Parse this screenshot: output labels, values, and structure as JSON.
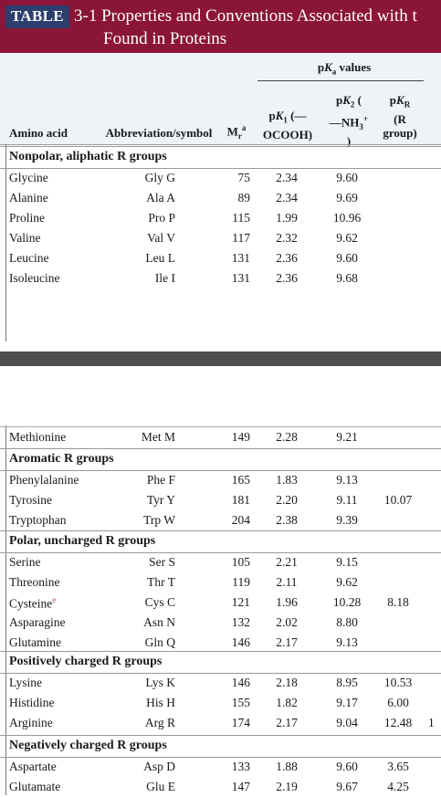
{
  "title": {
    "tag": "TABLE",
    "line1": "3-1 Properties and Conventions Associated with t",
    "line2": "Found in Proteins"
  },
  "headers": {
    "pka_group": "pKa values",
    "amino_acid": "Amino acid",
    "abbreviation": "Abbreviation/symbol",
    "mr": "Mr",
    "mr_sup": "a",
    "pk1": "pK1 (—\nOCOOH)",
    "pk2": "pK2 (\n—NH3+\n)",
    "pkr": "pKR\n(R\ngroup)"
  },
  "sections": [
    {
      "label": "Nonpolar, aliphatic R groups",
      "rows": [
        {
          "name": "Glycine",
          "abbr": "Gly G",
          "mr": "75",
          "pk1": "2.34",
          "pk2": "9.60",
          "pkr": ""
        },
        {
          "name": "Alanine",
          "abbr": "Ala A",
          "mr": "89",
          "pk1": "2.34",
          "pk2": "9.69",
          "pkr": ""
        },
        {
          "name": "Proline",
          "abbr": "Pro P",
          "mr": "115",
          "pk1": "1.99",
          "pk2": "10.96",
          "pkr": ""
        },
        {
          "name": "Valine",
          "abbr": "Val V",
          "mr": "117",
          "pk1": "2.32",
          "pk2": "9.62",
          "pkr": ""
        },
        {
          "name": "Leucine",
          "abbr": "Leu L",
          "mr": "131",
          "pk1": "2.36",
          "pk2": "9.60",
          "pkr": ""
        },
        {
          "name": "Isoleucine",
          "abbr": "Ile I",
          "mr": "131",
          "pk1": "2.36",
          "pk2": "9.68",
          "pkr": ""
        }
      ]
    },
    {
      "label": "",
      "rows": [
        {
          "name": "Methionine",
          "abbr": "Met M",
          "mr": "149",
          "pk1": "2.28",
          "pk2": "9.21",
          "pkr": ""
        }
      ]
    },
    {
      "label": "Aromatic R groups",
      "rows": [
        {
          "name": "Phenylalanine",
          "abbr": "Phe F",
          "mr": "165",
          "pk1": "1.83",
          "pk2": "9.13",
          "pkr": ""
        },
        {
          "name": "Tyrosine",
          "abbr": "Tyr Y",
          "mr": "181",
          "pk1": "2.20",
          "pk2": "9.11",
          "pkr": "10.07"
        },
        {
          "name": "Tryptophan",
          "abbr": "Trp W",
          "mr": "204",
          "pk1": "2.38",
          "pk2": "9.39",
          "pkr": ""
        }
      ]
    },
    {
      "label": "Polar, uncharged R groups",
      "rows": [
        {
          "name": "Serine",
          "abbr": "Ser S",
          "mr": "105",
          "pk1": "2.21",
          "pk2": "9.15",
          "pkr": ""
        },
        {
          "name": "Threonine",
          "abbr": "Thr T",
          "mr": "119",
          "pk1": "2.11",
          "pk2": "9.62",
          "pkr": ""
        },
        {
          "name": "Cysteine",
          "sup": "e",
          "abbr": "Cys C",
          "mr": "121",
          "pk1": "1.96",
          "pk2": "10.28",
          "pkr": "8.18"
        },
        {
          "name": "Asparagine",
          "abbr": "Asn N",
          "mr": "132",
          "pk1": "2.02",
          "pk2": "8.80",
          "pkr": ""
        },
        {
          "name": "Glutamine",
          "abbr": "Gln Q",
          "mr": "146",
          "pk1": "2.17",
          "pk2": "9.13",
          "pkr": ""
        }
      ]
    },
    {
      "label": "Positively charged R groups",
      "rows": [
        {
          "name": "Lysine",
          "abbr": "Lys K",
          "mr": "146",
          "pk1": "2.18",
          "pk2": "8.95",
          "pkr": "10.53"
        },
        {
          "name": "Histidine",
          "abbr": "His H",
          "mr": "155",
          "pk1": "1.82",
          "pk2": "9.17",
          "pkr": "6.00"
        },
        {
          "name": "Arginine",
          "abbr": "Arg R",
          "mr": "174",
          "pk1": "2.17",
          "pk2": "9.04",
          "pkr": "12.48",
          "extra": "1"
        }
      ]
    },
    {
      "label": "Negatively charged R groups",
      "rows": [
        {
          "name": "Aspartate",
          "abbr": "Asp D",
          "mr": "133",
          "pk1": "1.88",
          "pk2": "9.60",
          "pkr": "3.65"
        },
        {
          "name": "Glutamate",
          "abbr": "Glu E",
          "mr": "147",
          "pk1": "2.19",
          "pk2": "9.67",
          "pkr": "4.25"
        }
      ]
    }
  ]
}
